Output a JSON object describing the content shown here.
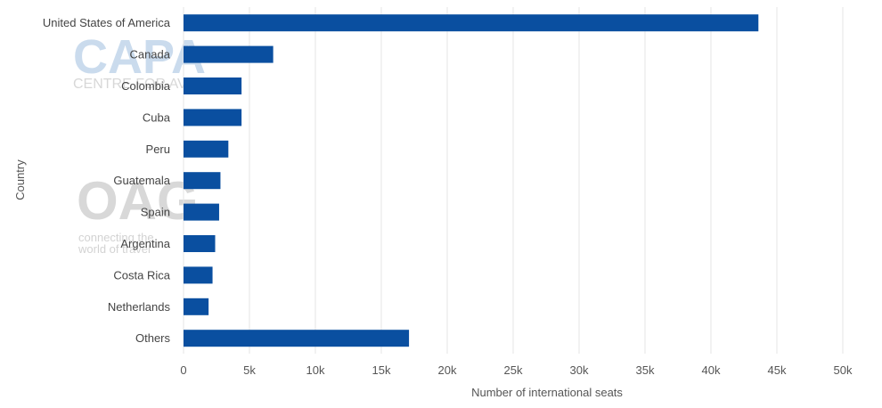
{
  "watermarks": {
    "capa_logo": "CAPA",
    "capa_sub": "CENTRE FOR AVIATION",
    "oag_logo": "OAG",
    "oag_tagline_1": "connecting the",
    "oag_tagline_2": "world of travel"
  },
  "colors": {
    "bar": "#0a4fa0",
    "grid": "#e6e6e6",
    "text": "#555555",
    "watermark_capa": "#9fbfe0",
    "watermark_oag": "#c8c8c8"
  },
  "chart_data": {
    "type": "bar",
    "orientation": "horizontal",
    "categories": [
      "United States of America",
      "Canada",
      "Colombia",
      "Cuba",
      "Peru",
      "Guatemala",
      "Spain",
      "Argentina",
      "Costa Rica",
      "Netherlands",
      "Others"
    ],
    "values": [
      43600,
      6800,
      4400,
      4400,
      3400,
      2800,
      2700,
      2400,
      2200,
      1900,
      17100
    ],
    "xlabel": "Number of international seats",
    "ylabel": "Country",
    "xlim": [
      0,
      50000
    ],
    "xticks": [
      0,
      5000,
      10000,
      15000,
      20000,
      25000,
      30000,
      35000,
      40000,
      45000,
      50000
    ],
    "xtick_labels": [
      "0",
      "5k",
      "10k",
      "15k",
      "20k",
      "25k",
      "30k",
      "35k",
      "40k",
      "45k",
      "50k"
    ],
    "grid": true,
    "legend": "none"
  }
}
